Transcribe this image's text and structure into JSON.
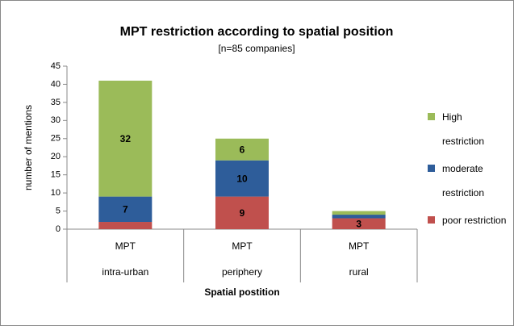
{
  "chart_data": {
    "type": "stacked_bar",
    "title": "MPT restriction according to spatial position",
    "subtitle": "[n=85 companies]",
    "xlabel": "Spatial postition",
    "ylabel": "number of mentions",
    "categories": [
      [
        "MPT",
        "intra-urban"
      ],
      [
        "MPT",
        "periphery"
      ],
      [
        "MPT",
        "rural"
      ]
    ],
    "series": [
      {
        "name": "poor restriction",
        "color": "#c0504d",
        "values": [
          2,
          9,
          3
        ],
        "value_labels": [
          null,
          "9",
          "3"
        ]
      },
      {
        "name": "moderate restriction",
        "color": "#2e5d9a",
        "values": [
          7,
          10,
          1
        ],
        "value_labels": [
          "7",
          "10",
          null
        ]
      },
      {
        "name": "High restriction",
        "color": "#9bbb59",
        "values": [
          32,
          6,
          1
        ],
        "value_labels": [
          "32",
          "6",
          null
        ]
      }
    ],
    "ylim": [
      0,
      45
    ],
    "yticks": [
      0,
      5,
      10,
      15,
      20,
      25,
      30,
      35,
      40,
      45
    ],
    "grid": false,
    "legend": "right"
  }
}
